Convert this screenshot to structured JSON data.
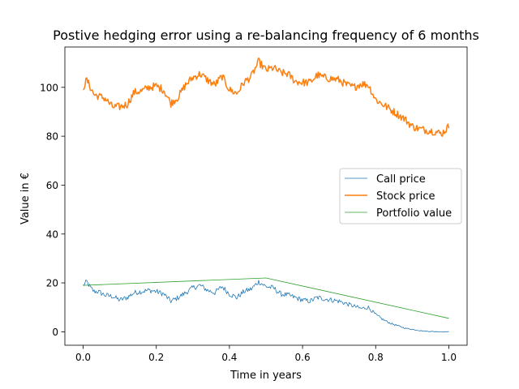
{
  "chart_data": {
    "type": "line",
    "title": "Postive hedging error using a re-balancing frequency of 6 months",
    "xlabel": "Time in years",
    "ylabel": "Value in €",
    "xlim": [
      -0.05,
      1.05
    ],
    "ylim": [
      -5.5,
      116.5
    ],
    "xticks": [
      0.0,
      0.2,
      0.4,
      0.6,
      0.8,
      1.0
    ],
    "xtick_labels": [
      "0.0",
      "0.2",
      "0.4",
      "0.6",
      "0.8",
      "1.0"
    ],
    "yticks": [
      0,
      20,
      40,
      60,
      80,
      100
    ],
    "ytick_labels": [
      "0",
      "20",
      "40",
      "60",
      "80",
      "100"
    ],
    "grid": false,
    "legend_position": "center-right",
    "series": [
      {
        "name": "Call price",
        "color": "#1f77b4",
        "x": [
          0.0,
          0.01,
          0.02,
          0.03,
          0.04,
          0.06,
          0.08,
          0.1,
          0.12,
          0.14,
          0.16,
          0.18,
          0.2,
          0.22,
          0.24,
          0.26,
          0.28,
          0.3,
          0.32,
          0.34,
          0.36,
          0.38,
          0.4,
          0.42,
          0.44,
          0.46,
          0.48,
          0.5,
          0.52,
          0.54,
          0.56,
          0.58,
          0.6,
          0.62,
          0.64,
          0.66,
          0.68,
          0.7,
          0.72,
          0.74,
          0.76,
          0.78,
          0.8,
          0.82,
          0.84,
          0.86,
          0.88,
          0.9,
          0.92,
          0.94,
          0.96,
          0.98,
          1.0
        ],
        "values": [
          19.0,
          20.5,
          18.0,
          16.5,
          16.5,
          15.0,
          14.5,
          13.0,
          14.0,
          16.0,
          16.5,
          17.0,
          16.5,
          15.5,
          12.5,
          14.0,
          16.0,
          18.0,
          19.0,
          17.0,
          16.0,
          18.5,
          15.5,
          14.0,
          16.5,
          17.5,
          20.5,
          18.5,
          18.0,
          15.5,
          15.0,
          14.0,
          13.0,
          12.5,
          14.0,
          13.5,
          13.0,
          12.5,
          11.5,
          10.5,
          9.5,
          10.0,
          7.0,
          5.0,
          3.5,
          2.5,
          1.5,
          1.0,
          0.5,
          0.2,
          0.1,
          0.0,
          0.0
        ]
      },
      {
        "name": "Stock price",
        "color": "#ff7f0e",
        "x": [
          0.0,
          0.01,
          0.02,
          0.03,
          0.04,
          0.06,
          0.08,
          0.1,
          0.12,
          0.14,
          0.16,
          0.18,
          0.2,
          0.22,
          0.24,
          0.26,
          0.28,
          0.3,
          0.32,
          0.34,
          0.36,
          0.38,
          0.4,
          0.42,
          0.44,
          0.46,
          0.48,
          0.5,
          0.52,
          0.54,
          0.56,
          0.58,
          0.6,
          0.62,
          0.64,
          0.66,
          0.68,
          0.7,
          0.72,
          0.74,
          0.76,
          0.78,
          0.8,
          0.82,
          0.84,
          0.86,
          0.88,
          0.9,
          0.92,
          0.94,
          0.96,
          0.98,
          1.0
        ],
        "values": [
          100.0,
          103.0,
          100.0,
          97.0,
          96.5,
          95.5,
          92.0,
          92.0,
          93.0,
          98.0,
          98.5,
          100.0,
          100.5,
          99.0,
          93.5,
          96.0,
          101.0,
          104.0,
          105.5,
          103.0,
          101.0,
          104.5,
          99.0,
          97.5,
          102.0,
          104.5,
          110.5,
          107.0,
          108.0,
          106.0,
          105.5,
          102.5,
          102.0,
          102.0,
          105.0,
          104.0,
          103.5,
          103.0,
          101.0,
          100.0,
          101.5,
          101.0,
          95.0,
          93.0,
          91.0,
          89.0,
          87.0,
          84.0,
          83.0,
          82.5,
          82.0,
          81.0,
          84.0
        ]
      },
      {
        "name": "Portfolio value",
        "color": "#2ca02c",
        "x": [
          0.0,
          0.5,
          1.0
        ],
        "values": [
          19.0,
          22.0,
          5.5
        ]
      }
    ]
  }
}
